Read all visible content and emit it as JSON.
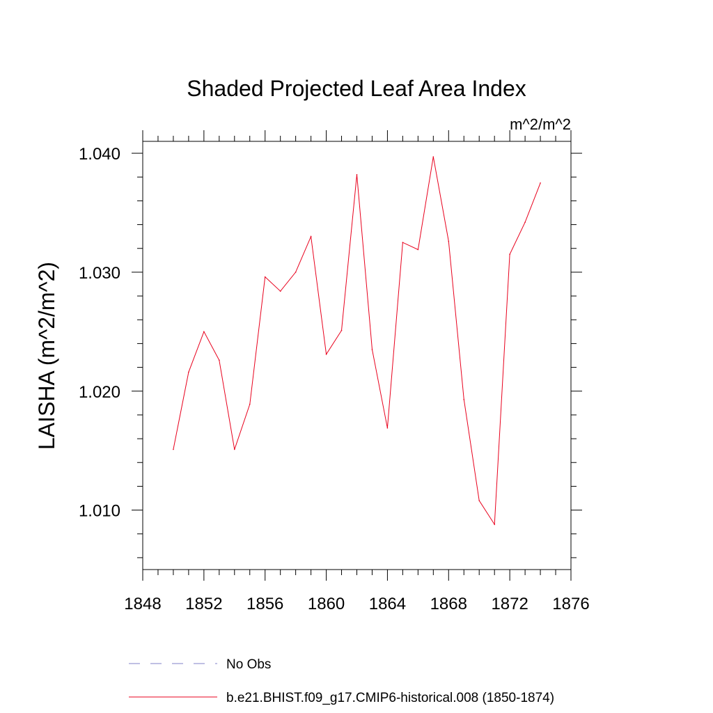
{
  "chart_data": {
    "type": "line",
    "title": "Shaded Projected Leaf Area Index",
    "units_label": "m^2/m^2",
    "ylabel": "LAISHA  (m^2/m^2)",
    "xlabel": "",
    "xlim": [
      1848,
      1876
    ],
    "ylim": [
      1.005,
      1.041
    ],
    "x_ticks": [
      1848,
      1852,
      1856,
      1860,
      1864,
      1868,
      1872,
      1876
    ],
    "x_tick_labels": [
      "1848",
      "1852",
      "1856",
      "1860",
      "1864",
      "1868",
      "1872",
      "1876"
    ],
    "y_ticks": [
      1.01,
      1.02,
      1.03,
      1.04
    ],
    "y_tick_labels": [
      "1.010",
      "1.020",
      "1.030",
      "1.040"
    ],
    "grid": false,
    "series": [
      {
        "name": "b.e21.BHIST.f09_g17.CMIP6-historical.008 (1850-1874)",
        "color": "#e8001c",
        "x": [
          1850,
          1851,
          1852,
          1853,
          1854,
          1855,
          1856,
          1857,
          1858,
          1859,
          1860,
          1861,
          1862,
          1863,
          1864,
          1865,
          1866,
          1867,
          1868,
          1869,
          1870,
          1871,
          1872,
          1873,
          1874
        ],
        "values": [
          1.0151,
          1.0216,
          1.025,
          1.0226,
          1.0151,
          1.0189,
          1.0296,
          1.0284,
          1.03,
          1.033,
          1.0231,
          1.0251,
          1.0382,
          1.0235,
          1.0169,
          1.0325,
          1.0319,
          1.0397,
          1.0326,
          1.0193,
          1.0108,
          1.0088,
          1.0315,
          1.0342,
          1.0375
        ]
      }
    ],
    "legend": [
      {
        "label": "No Obs",
        "style": "dashed",
        "color": "#8080c8"
      },
      {
        "label": "b.e21.BHIST.f09_g17.CMIP6-historical.008 (1850-1874)",
        "style": "solid",
        "color": "#e8001c"
      }
    ]
  }
}
